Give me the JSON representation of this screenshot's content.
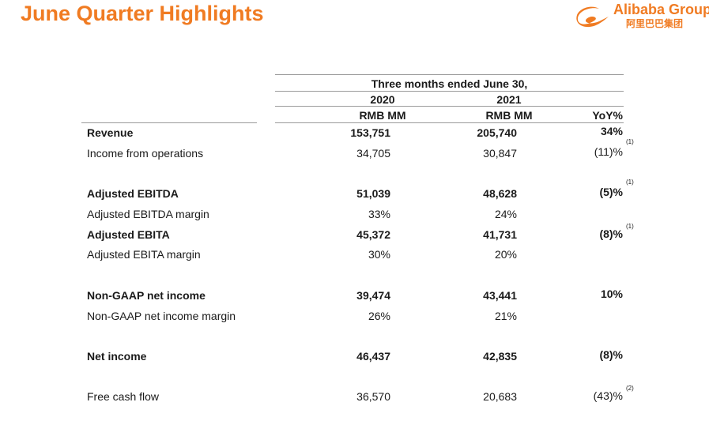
{
  "header": {
    "title": "June Quarter Highlights",
    "logo_name": "Alibaba Group",
    "logo_chinese": "阿里巴巴集团"
  },
  "table": {
    "period_header": "Three months ended June 30,",
    "year_2020": "2020",
    "year_2021": "2021",
    "unit_2020": "RMB MM",
    "unit_2021": "RMB MM",
    "yoy_header": "YoY%",
    "rows": [
      {
        "label": "Revenue",
        "v2020": "153,751",
        "v2021": "205,740",
        "yoy": "34%",
        "note": "",
        "bold": true
      },
      {
        "label": "Income from operations",
        "v2020": "34,705",
        "v2021": "30,847",
        "yoy": "(11)%",
        "note": "(1)",
        "bold": false
      },
      {
        "label": "Adjusted EBITDA",
        "v2020": "51,039",
        "v2021": "48,628",
        "yoy": "(5)%",
        "note": "(1)",
        "bold": true
      },
      {
        "label": "Adjusted EBITDA margin",
        "v2020": "33%",
        "v2021": "24%",
        "yoy": "",
        "note": "",
        "bold": false
      },
      {
        "label": "Adjusted EBITA",
        "v2020": "45,372",
        "v2021": "41,731",
        "yoy": "(8)%",
        "note": "(1)",
        "bold": true
      },
      {
        "label": "Adjusted EBITA margin",
        "v2020": "30%",
        "v2021": "20%",
        "yoy": "",
        "note": "",
        "bold": false
      },
      {
        "label": "Non-GAAP net income",
        "v2020": "39,474",
        "v2021": "43,441",
        "yoy": "10%",
        "note": "",
        "bold": true
      },
      {
        "label": "Non-GAAP net income margin",
        "v2020": "26%",
        "v2021": "21%",
        "yoy": "",
        "note": "",
        "bold": false
      },
      {
        "label": "Net income",
        "v2020": "46,437",
        "v2021": "42,835",
        "yoy": "(8)%",
        "note": "",
        "bold": true
      },
      {
        "label": "Free cash flow",
        "v2020": "36,570",
        "v2021": "20,683",
        "yoy": "(43)%",
        "note": "(2)",
        "bold": false
      }
    ]
  },
  "colors": {
    "accent": "#f07b22",
    "rule": "#9a9a9a",
    "text": "#1a1a1a"
  }
}
